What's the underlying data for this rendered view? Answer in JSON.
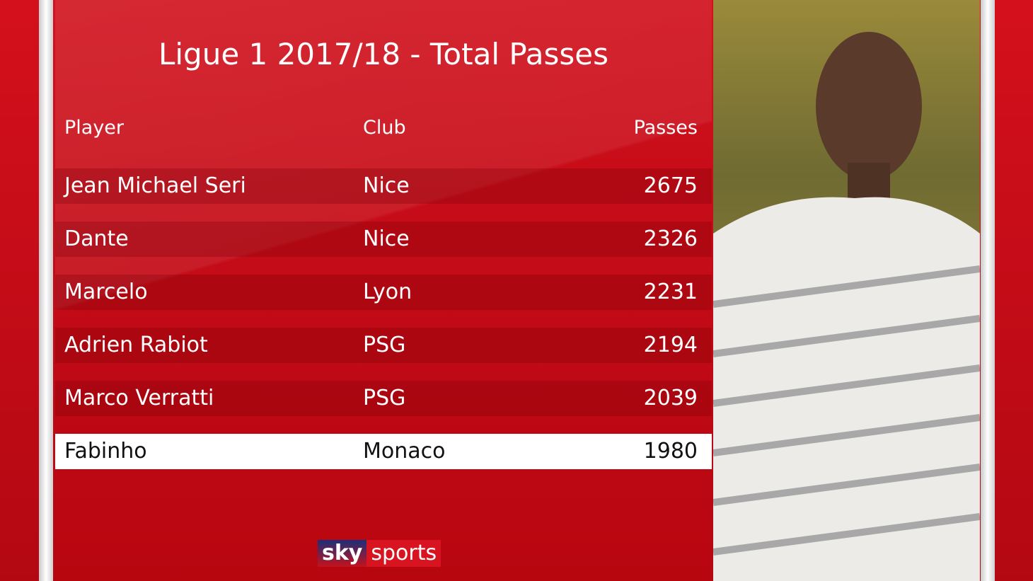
{
  "title": "Ligue 1 2017/18 - Total Passes",
  "table": {
    "header": [
      "Player",
      "Club",
      "Passes"
    ],
    "rows": [
      [
        "Jean Michael Seri",
        "Nice",
        2675
      ],
      [
        "Dante",
        "Nice",
        2326
      ],
      [
        "Marcelo",
        "Lyon",
        2231
      ],
      [
        "Adrien Rabiot",
        "PSG",
        2194
      ],
      [
        "Marco Verratti",
        "PSG",
        2039
      ],
      [
        "Fabinho",
        "Monaco",
        1980
      ]
    ],
    "highlight_row": 5
  },
  "logo": {
    "sky": "sky",
    "sports": "sports"
  }
}
